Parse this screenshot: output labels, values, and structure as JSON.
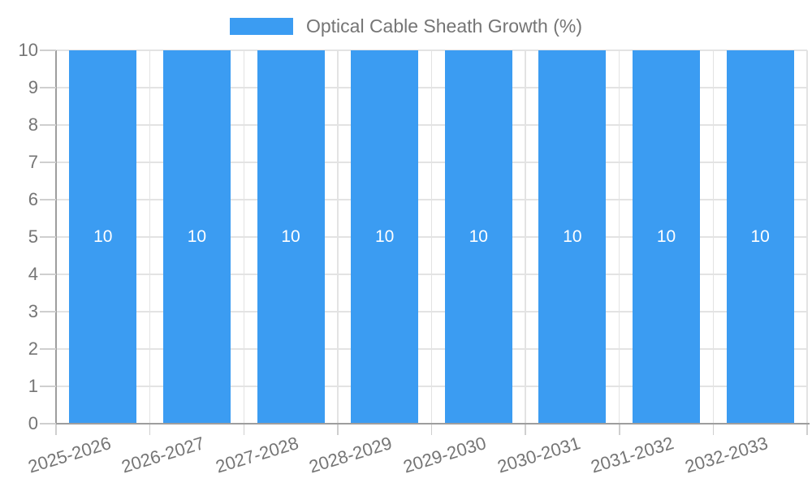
{
  "chart_data": {
    "type": "bar",
    "title": "Optical Cable Sheath Growth (%)",
    "categories": [
      "2025-2026",
      "2026-2027",
      "2027-2028",
      "2028-2029",
      "2029-2030",
      "2030-2031",
      "2031-2032",
      "2032-2033"
    ],
    "series": [
      {
        "name": "Optical Cable Sheath Growth (%)",
        "values": [
          10,
          10,
          10,
          10,
          10,
          10,
          10,
          10
        ],
        "data_labels": [
          "10",
          "10",
          "10",
          "10",
          "10",
          "10",
          "10",
          "10"
        ]
      }
    ],
    "xlabel": "",
    "ylabel": "",
    "ylim": [
      0,
      10
    ],
    "yticks": [
      0,
      1,
      2,
      3,
      4,
      5,
      6,
      7,
      8,
      9,
      10
    ],
    "ytick_labels": [
      "0",
      "1",
      "2",
      "3",
      "4",
      "5",
      "6",
      "7",
      "8",
      "9",
      "10"
    ],
    "grid": true,
    "legend_position": "top",
    "colors": {
      "bar": "#3b9cf2",
      "axis_line": "#9e9e9e",
      "grid_line": "#e3e3e3",
      "tick_mark": "#cfcfcf",
      "label_text": "#757575",
      "bar_label_text": "#ffffff",
      "background": "#ffffff"
    }
  }
}
